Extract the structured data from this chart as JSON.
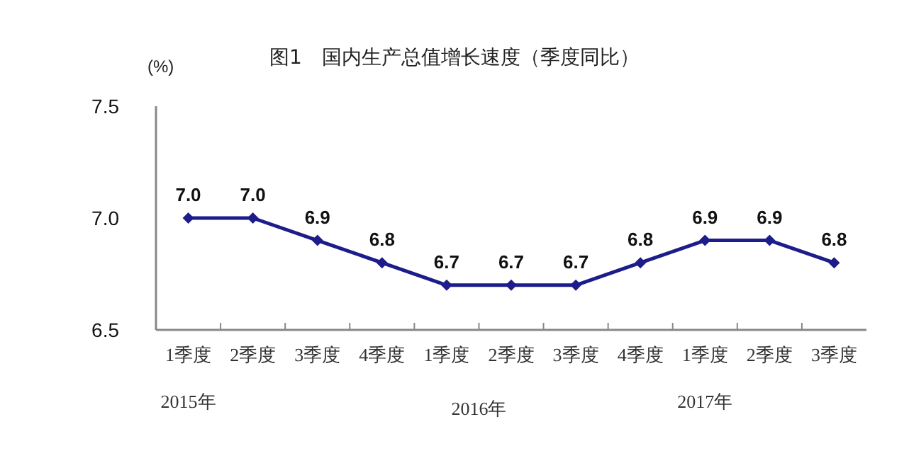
{
  "chart_data": {
    "type": "line",
    "title": "图1　国内生产总值增长速度（季度同比）",
    "ylabel": "(%)",
    "categories": [
      "1季度",
      "2季度",
      "3季度",
      "4季度",
      "1季度",
      "2季度",
      "3季度",
      "4季度",
      "1季度",
      "2季度",
      "3季度"
    ],
    "series": [
      {
        "color": "#1c1c8a",
        "values": [
          7.0,
          7.0,
          6.9,
          6.8,
          6.7,
          6.7,
          6.7,
          6.8,
          6.9,
          6.9,
          6.8
        ],
        "value_labels": [
          "7.0",
          "7.0",
          "6.9",
          "6.8",
          "6.7",
          "6.7",
          "6.7",
          "6.8",
          "6.9",
          "6.9",
          "6.8"
        ]
      }
    ],
    "ylim": [
      6.5,
      7.5
    ],
    "yticks": [
      6.5,
      {
        "value": 7,
        "label": "7.0"
      },
      7.5
    ],
    "annotations": [
      "2015年",
      "2016年",
      "2017年"
    ],
    "marker": "diamond",
    "line_style": "solid",
    "grid": false,
    "legend": false
  }
}
